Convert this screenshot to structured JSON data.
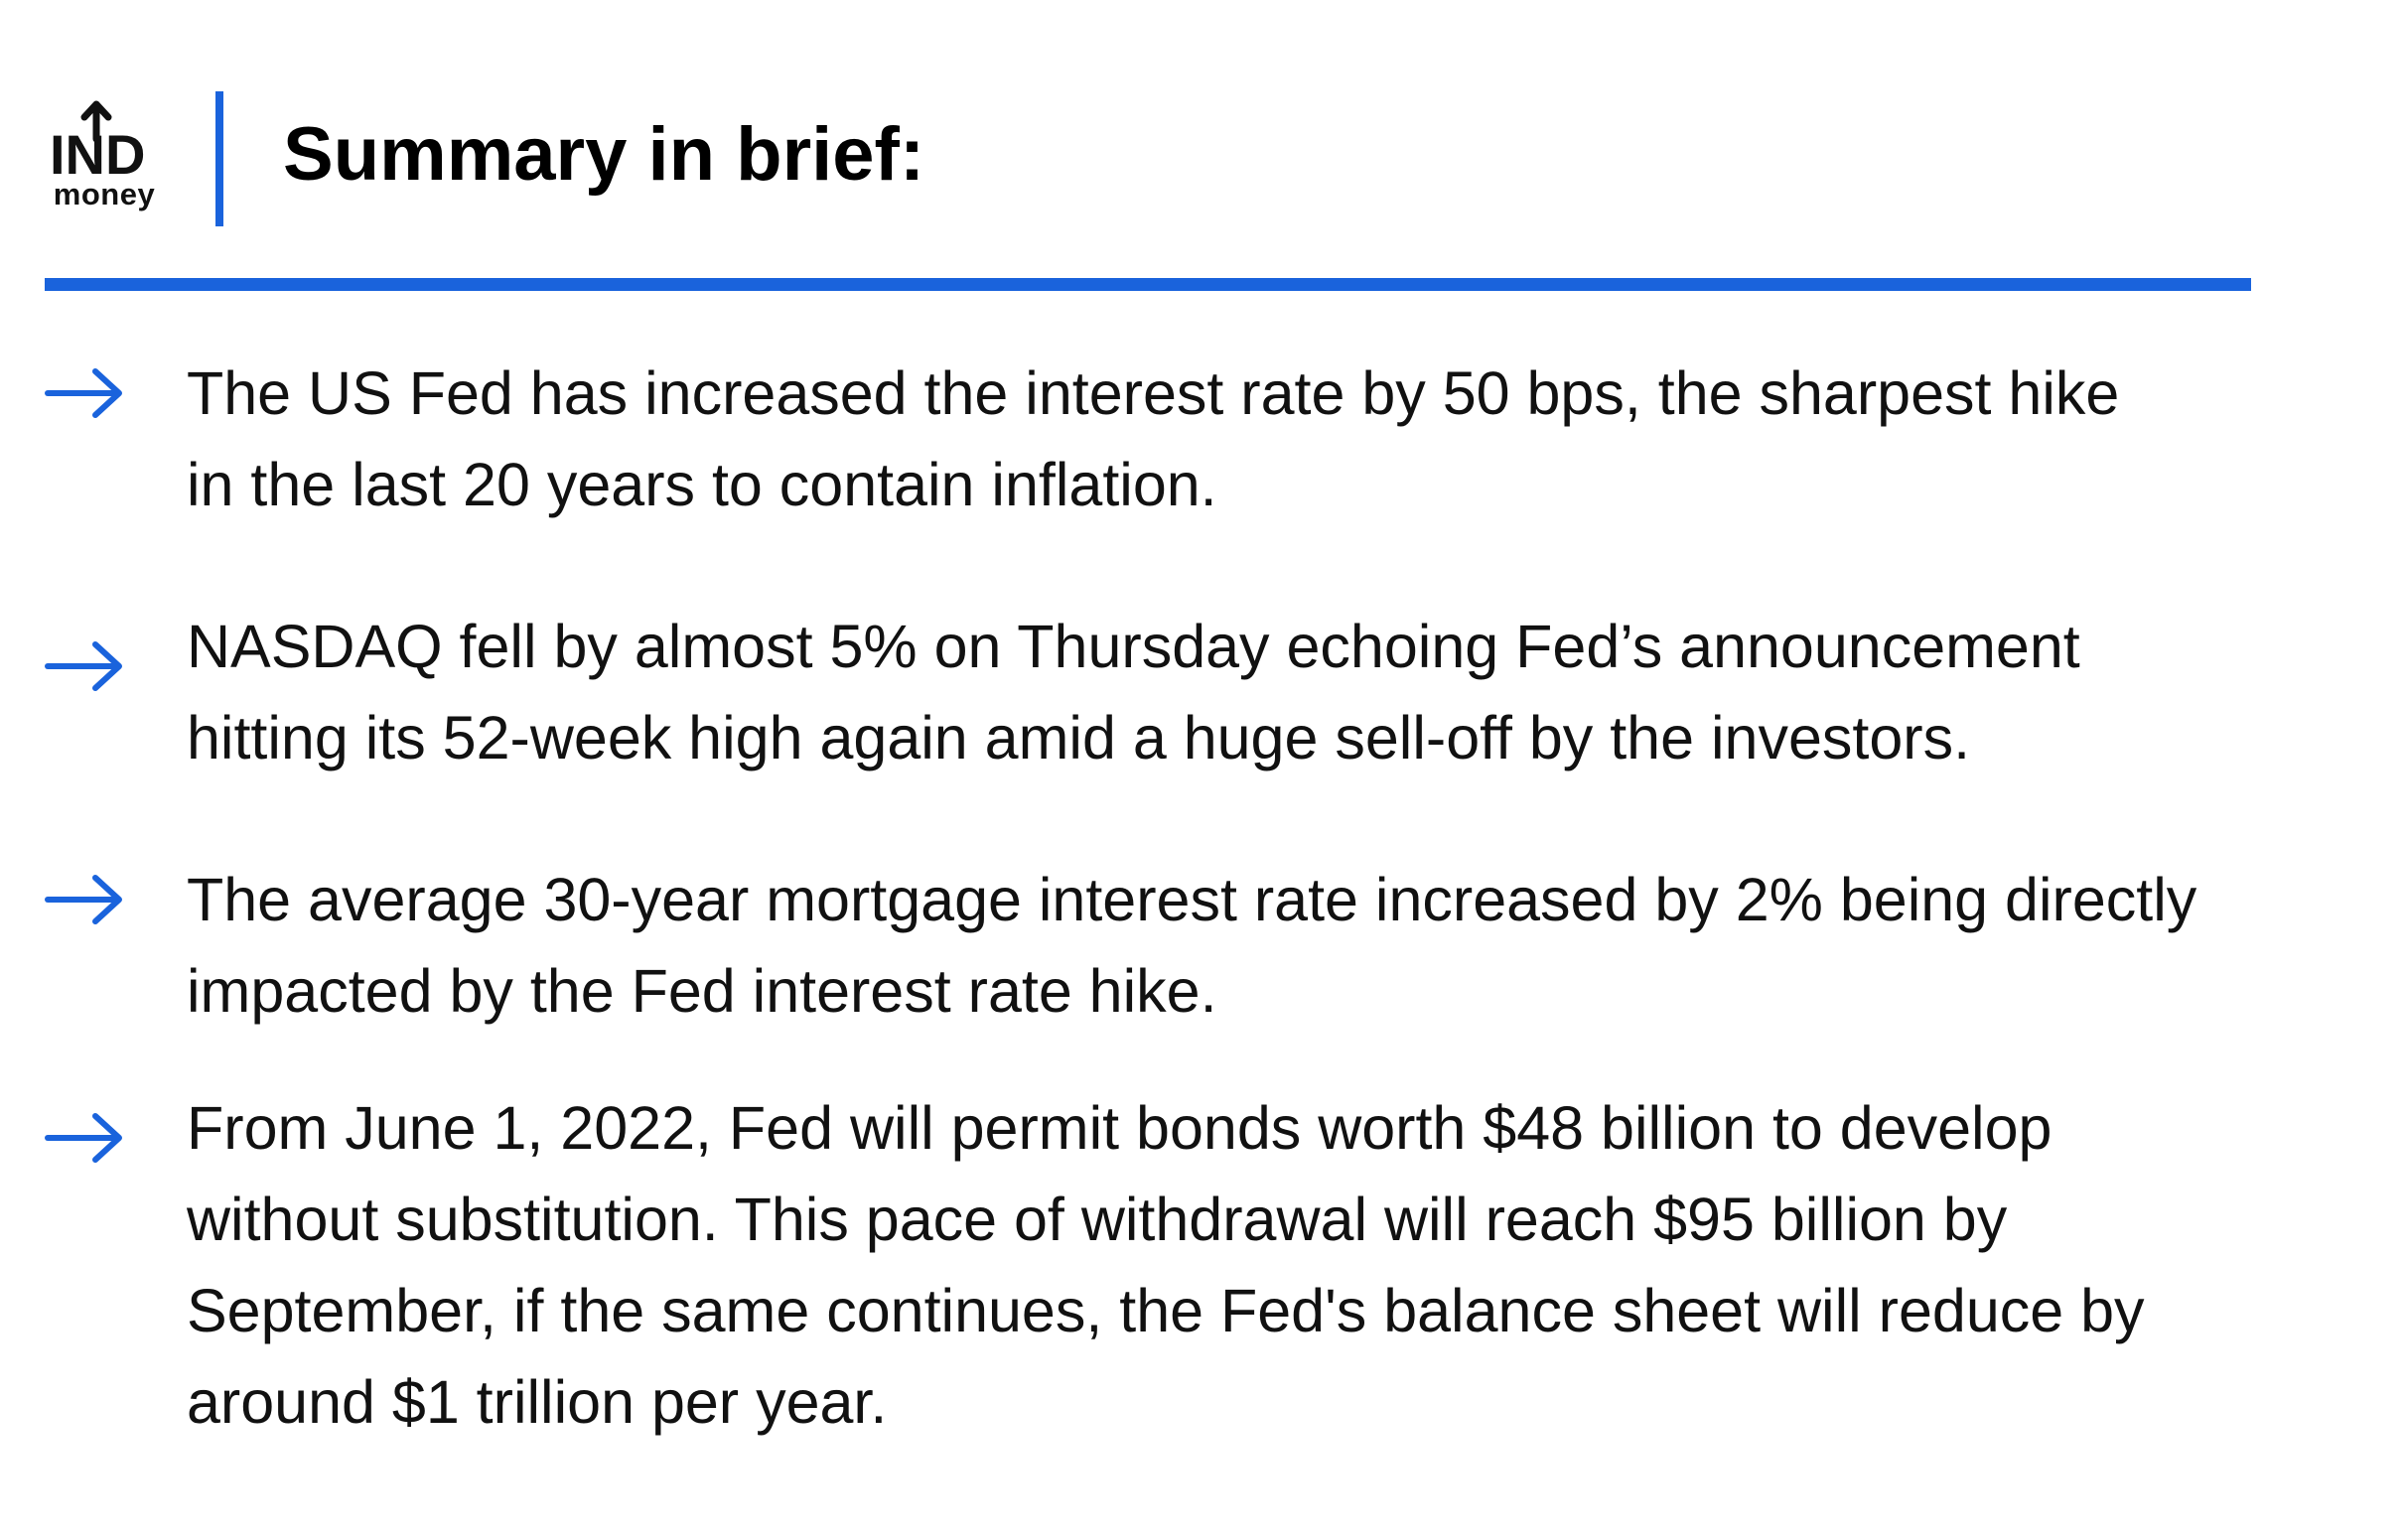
{
  "brand": {
    "logo_mark": "IND",
    "logo_word": "money",
    "accent_color": "#1a63dc"
  },
  "header": {
    "title": "Summary in brief:"
  },
  "bullets": [
    {
      "icon": "right-arrow-icon",
      "lines": [
        "The US Fed has increased the interest rate by 50 bps, the sharpest hike",
        "in the last 20 years to contain inflation."
      ]
    },
    {
      "icon": "right-arrow-icon",
      "lines": [
        "NASDAQ fell by almost 5% on Thursday echoing Fed’s announcement",
        "hitting its 52-week high again amid a huge sell-off by the investors."
      ]
    },
    {
      "icon": "right-arrow-icon",
      "lines": [
        "The average 30-year mortgage interest rate increased by 2% being directly",
        "impacted by the Fed interest rate hike."
      ]
    },
    {
      "icon": "right-arrow-icon",
      "lines": [
        "From June 1, 2022, Fed will permit bonds worth $48 billion to develop",
        "without substitution. This pace of withdrawal will reach $95 billion by",
        "September, if the same continues, the Fed's balance sheet will reduce by",
        "around $1 trillion per year."
      ]
    }
  ]
}
